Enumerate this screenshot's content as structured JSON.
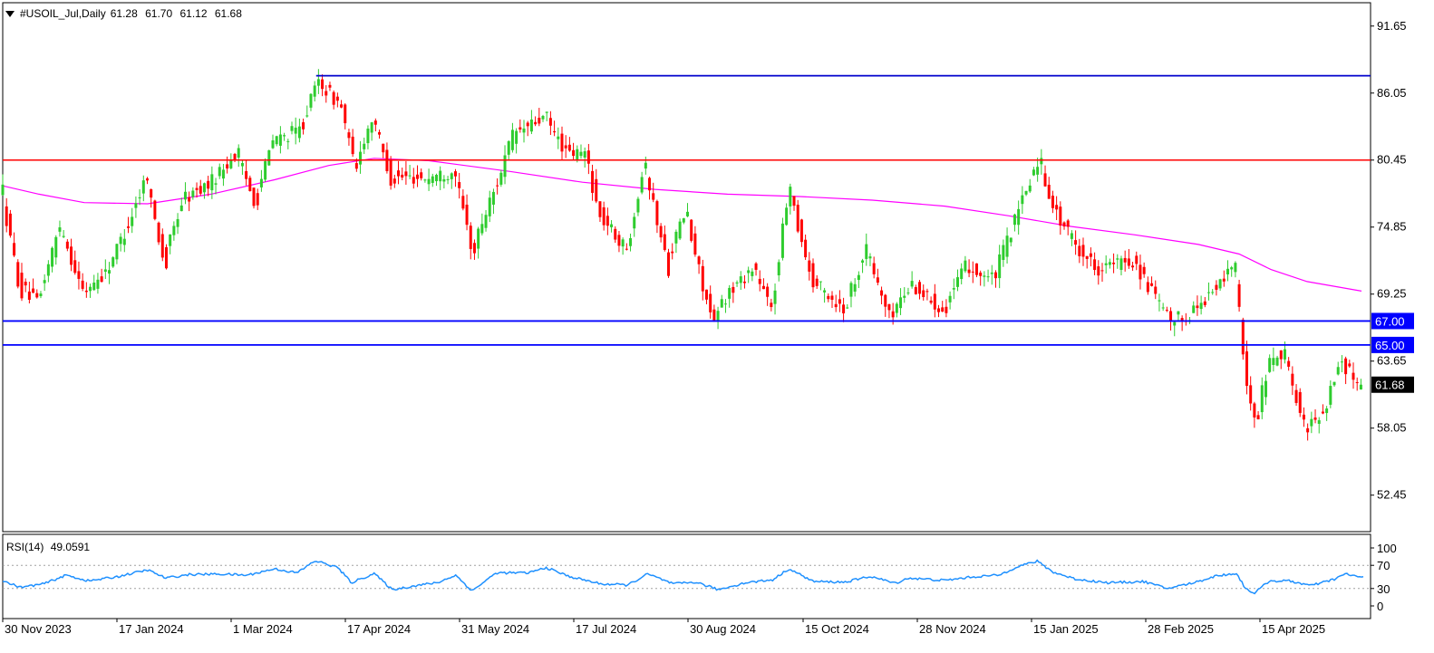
{
  "header": {
    "symbol": "#USOIL_Jul,Daily",
    "open": "61.28",
    "high": "61.70",
    "low": "61.12",
    "close": "61.68"
  },
  "rsi": {
    "label": "RSI(14)",
    "value": "49.0591",
    "levels": [
      30,
      70
    ],
    "axis_labels": [
      "100",
      "70",
      "30",
      "0"
    ]
  },
  "chart_data": {
    "type": "candlestick",
    "price_axis": {
      "ylim": [
        49.4,
        93.6
      ],
      "tick_labels": [
        "91.65",
        "86.05",
        "80.45",
        "74.85",
        "69.25",
        "63.65",
        "58.05",
        "52.45"
      ]
    },
    "x_tick_labels": [
      "30 Nov 2023",
      "17 Jan 2024",
      "1 Mar 2024",
      "17 Apr 2024",
      "31 May 2024",
      "17 Jul 2024",
      "30 Aug 2024",
      "15 Oct 2024",
      "28 Nov 2024",
      "15 Jan 2025",
      "28 Feb 2025",
      "15 Apr 2025"
    ],
    "horizontal_lines": [
      {
        "price": 87.5,
        "color": "#0000cc"
      },
      {
        "price": 80.45,
        "color": "#ff0000"
      },
      {
        "price": 67.0,
        "color": "#0000ff",
        "label": "67.00"
      },
      {
        "price": 65.0,
        "color": "#0000ff",
        "label": "65.00"
      }
    ],
    "current_price": "61.68",
    "moving_average": {
      "color": "#ff00ff",
      "points": [
        [
          0,
          78.3
        ],
        [
          40,
          77.6
        ],
        [
          90,
          76.9
        ],
        [
          160,
          76.8
        ],
        [
          230,
          77.6
        ],
        [
          300,
          78.8
        ],
        [
          360,
          80.0
        ],
        [
          410,
          80.6
        ],
        [
          470,
          80.4
        ],
        [
          560,
          79.5
        ],
        [
          640,
          78.6
        ],
        [
          720,
          78.0
        ],
        [
          800,
          77.6
        ],
        [
          880,
          77.4
        ],
        [
          960,
          77.1
        ],
        [
          1040,
          76.6
        ],
        [
          1110,
          75.8
        ],
        [
          1180,
          74.9
        ],
        [
          1250,
          74.2
        ],
        [
          1320,
          73.4
        ],
        [
          1365,
          72.6
        ],
        [
          1400,
          71.3
        ],
        [
          1440,
          70.3
        ],
        [
          1500,
          69.5
        ]
      ]
    },
    "price_path": [
      [
        0,
        78.0
      ],
      [
        20,
        70.0
      ],
      [
        40,
        68.5
      ],
      [
        65,
        75.0
      ],
      [
        90,
        69.5
      ],
      [
        115,
        71.0
      ],
      [
        140,
        75.0
      ],
      [
        160,
        79.0
      ],
      [
        180,
        72.0
      ],
      [
        200,
        77.0
      ],
      [
        230,
        78.5
      ],
      [
        260,
        81.0
      ],
      [
        280,
        77.0
      ],
      [
        300,
        82.0
      ],
      [
        330,
        83.0
      ],
      [
        350,
        87.0
      ],
      [
        375,
        85.0
      ],
      [
        390,
        80.0
      ],
      [
        410,
        84.0
      ],
      [
        430,
        79.0
      ],
      [
        470,
        79.0
      ],
      [
        500,
        79.5
      ],
      [
        520,
        73.0
      ],
      [
        545,
        78.0
      ],
      [
        565,
        82.5
      ],
      [
        600,
        84.0
      ],
      [
        625,
        81.0
      ],
      [
        645,
        81.0
      ],
      [
        660,
        76.0
      ],
      [
        690,
        73.0
      ],
      [
        710,
        80.0
      ],
      [
        735,
        72.0
      ],
      [
        755,
        76.0
      ],
      [
        785,
        67.0
      ],
      [
        800,
        69.0
      ],
      [
        830,
        71.5
      ],
      [
        850,
        68.0
      ],
      [
        870,
        78.0
      ],
      [
        895,
        70.5
      ],
      [
        930,
        68.0
      ],
      [
        955,
        73.0
      ],
      [
        980,
        67.5
      ],
      [
        1005,
        70.0
      ],
      [
        1040,
        68.0
      ],
      [
        1065,
        71.5
      ],
      [
        1095,
        70.5
      ],
      [
        1120,
        75.5
      ],
      [
        1145,
        80.5
      ],
      [
        1165,
        76.0
      ],
      [
        1190,
        73.0
      ],
      [
        1210,
        71.5
      ],
      [
        1250,
        72.0
      ],
      [
        1270,
        69.5
      ],
      [
        1290,
        67.0
      ],
      [
        1310,
        67.5
      ],
      [
        1345,
        70.0
      ],
      [
        1362,
        72.0
      ],
      [
        1372,
        63.0
      ],
      [
        1385,
        59.0
      ],
      [
        1400,
        63.5
      ],
      [
        1415,
        64.5
      ],
      [
        1440,
        58.0
      ],
      [
        1460,
        59.5
      ],
      [
        1478,
        63.5
      ],
      [
        1502,
        61.68
      ]
    ],
    "rsi_path": [
      [
        0,
        43
      ],
      [
        20,
        32
      ],
      [
        45,
        38
      ],
      [
        70,
        53
      ],
      [
        95,
        43
      ],
      [
        125,
        50
      ],
      [
        160,
        62
      ],
      [
        180,
        48
      ],
      [
        205,
        54
      ],
      [
        240,
        55
      ],
      [
        270,
        53
      ],
      [
        300,
        64
      ],
      [
        325,
        57
      ],
      [
        345,
        78
      ],
      [
        370,
        66
      ],
      [
        385,
        40
      ],
      [
        410,
        56
      ],
      [
        430,
        28
      ],
      [
        460,
        36
      ],
      [
        480,
        40
      ],
      [
        500,
        53
      ],
      [
        518,
        26
      ],
      [
        545,
        57
      ],
      [
        580,
        57
      ],
      [
        600,
        66
      ],
      [
        625,
        51
      ],
      [
        660,
        38
      ],
      [
        690,
        36
      ],
      [
        712,
        55
      ],
      [
        740,
        38
      ],
      [
        765,
        41
      ],
      [
        790,
        28
      ],
      [
        820,
        40
      ],
      [
        850,
        45
      ],
      [
        868,
        64
      ],
      [
        895,
        42
      ],
      [
        930,
        41
      ],
      [
        958,
        51
      ],
      [
        985,
        39
      ],
      [
        1000,
        48
      ],
      [
        1040,
        44
      ],
      [
        1070,
        50
      ],
      [
        1100,
        53
      ],
      [
        1120,
        68
      ],
      [
        1142,
        77
      ],
      [
        1160,
        58
      ],
      [
        1185,
        46
      ],
      [
        1220,
        40
      ],
      [
        1260,
        42
      ],
      [
        1285,
        30
      ],
      [
        1315,
        40
      ],
      [
        1340,
        52
      ],
      [
        1362,
        56
      ],
      [
        1372,
        30
      ],
      [
        1382,
        22
      ],
      [
        1398,
        43
      ],
      [
        1420,
        43
      ],
      [
        1445,
        35
      ],
      [
        1470,
        46
      ],
      [
        1482,
        55
      ],
      [
        1502,
        49
      ]
    ]
  },
  "colors": {
    "bull": "#2ecc2e",
    "bear": "#ff0000",
    "rsi_line": "#1e90ff",
    "axis": "#000000",
    "level_dots": "#a0a0a0",
    "label_bg_blue": "#0000ff",
    "label_bg_black": "#000000"
  }
}
